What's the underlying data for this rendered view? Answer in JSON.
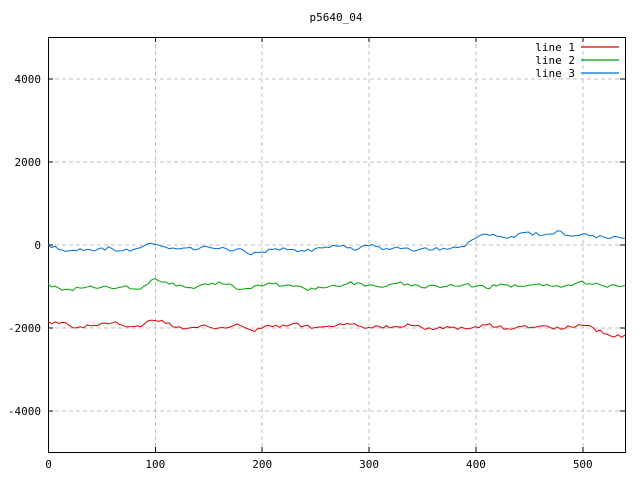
{
  "chart_data": {
    "type": "line",
    "title": "p5640_04",
    "xlabel": "",
    "ylabel": "",
    "xlim": [
      0,
      540
    ],
    "ylim": [
      -5000,
      5000
    ],
    "xticks": [
      0,
      100,
      200,
      300,
      400,
      500
    ],
    "yticks": [
      -4000,
      -2000,
      0,
      2000,
      4000
    ],
    "grid": true,
    "legend_position": "top-right",
    "x_step": 10,
    "noise_amplitude": 50,
    "colors": {
      "grid": "#c0c0c0",
      "border": "#000000",
      "background": "#ffffff"
    },
    "series": [
      {
        "name": "line 1",
        "color": "#e00000",
        "values": [
          -1850,
          -1900,
          -1950,
          -1980,
          -1960,
          -1900,
          -1890,
          -1950,
          -1980,
          -1920,
          -1830,
          -1900,
          -1990,
          -2020,
          -2000,
          -1980,
          -2010,
          -1990,
          -1950,
          -2060,
          -2020,
          -1980,
          -1940,
          -1900,
          -1960,
          -2000,
          -1980,
          -1950,
          -1900,
          -1960,
          -2000,
          -1970,
          -2010,
          -1990,
          -1950,
          -2000,
          -2050,
          -2030,
          -1990,
          -2020,
          -1980,
          -1940,
          -1990,
          -2030,
          -1980,
          -2010,
          -1970,
          -2000,
          -2040,
          -1990,
          -1950,
          -2000,
          -2150,
          -2230,
          -2180
        ]
      },
      {
        "name": "line 2",
        "color": "#00a000",
        "values": [
          -950,
          -1050,
          -1080,
          -1050,
          -1000,
          -1030,
          -1060,
          -1020,
          -1070,
          -1000,
          -820,
          -900,
          -1000,
          -1040,
          -1010,
          -970,
          -900,
          -950,
          -1080,
          -1060,
          -1000,
          -950,
          -1000,
          -1010,
          -1060,
          -1080,
          -1040,
          -1000,
          -950,
          -920,
          -980,
          -1020,
          -960,
          -900,
          -1000,
          -1040,
          -980,
          -1020,
          -1000,
          -960,
          -1010,
          -1050,
          -1000,
          -970,
          -1010,
          -980,
          -950,
          -1000,
          -1030,
          -990,
          -880,
          -960,
          -1000,
          -970,
          -990
        ]
      },
      {
        "name": "line 3",
        "color": "#0070d0",
        "values": [
          0,
          -120,
          -150,
          -100,
          -130,
          -80,
          -100,
          -150,
          -120,
          -30,
          0,
          -60,
          -100,
          -80,
          -120,
          -60,
          -100,
          -150,
          -100,
          -250,
          -180,
          -120,
          -80,
          -120,
          -160,
          -100,
          -60,
          -40,
          -80,
          -120,
          -30,
          -60,
          -120,
          -100,
          -140,
          -100,
          -130,
          -90,
          -60,
          -50,
          150,
          250,
          200,
          150,
          250,
          300,
          220,
          250,
          320,
          200,
          250,
          220,
          180,
          200,
          150
        ]
      }
    ]
  }
}
